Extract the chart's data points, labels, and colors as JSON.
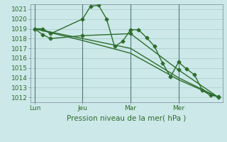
{
  "background_color": "#cce8e8",
  "grid_color": "#aacccc",
  "line_color": "#2d6e2d",
  "marker_color": "#2d6e2d",
  "xlabel": "Pression niveau de la mer( hPa )",
  "ylim": [
    1011.5,
    1021.5
  ],
  "yticks": [
    1012,
    1013,
    1014,
    1015,
    1016,
    1017,
    1018,
    1019,
    1020,
    1021
  ],
  "xtick_labels": [
    "Lun",
    "Jeu",
    "Mar",
    "Mer"
  ],
  "xtick_positions": [
    0,
    6,
    12,
    18
  ],
  "xlim": [
    -0.5,
    23.5
  ],
  "series1": {
    "x": [
      0,
      1,
      2,
      6,
      7,
      8,
      9,
      10,
      11,
      12,
      13,
      14,
      15,
      16,
      17,
      18,
      19,
      20,
      21,
      22,
      23
    ],
    "y": [
      1019.0,
      1019.0,
      1018.5,
      1020.0,
      1021.3,
      1021.4,
      1020.0,
      1017.2,
      1017.7,
      1018.9,
      1018.9,
      1018.1,
      1017.2,
      1015.5,
      1014.1,
      1015.6,
      1014.9,
      1014.3,
      1012.7,
      1012.2,
      1012.1
    ]
  },
  "series2": {
    "x": [
      0,
      1,
      2,
      6,
      12,
      18,
      23
    ],
    "y": [
      1019.0,
      1018.4,
      1018.0,
      1018.3,
      1018.5,
      1014.8,
      1012.0
    ]
  },
  "series3": {
    "x": [
      0,
      6,
      12,
      18,
      23
    ],
    "y": [
      1019.0,
      1018.0,
      1017.0,
      1014.0,
      1012.0
    ]
  },
  "series4": {
    "x": [
      0,
      6,
      12,
      18,
      23
    ],
    "y": [
      1019.0,
      1017.8,
      1016.5,
      1013.8,
      1012.0
    ]
  },
  "vline_positions": [
    0,
    6,
    12,
    18
  ],
  "vline_color": "#557777",
  "spine_color": "#778899",
  "tick_label_fontsize": 6.5,
  "xlabel_fontsize": 7.5,
  "lw": 1.0,
  "ms": 2.5
}
